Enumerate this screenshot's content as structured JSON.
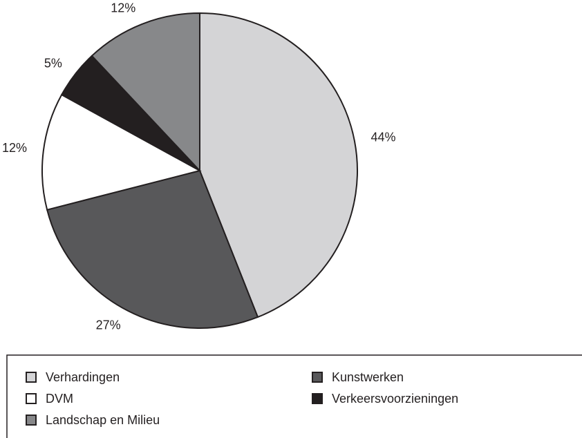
{
  "chart_data": {
    "type": "pie",
    "categories": [
      "Verhardingen",
      "Kunstwerken",
      "DVM",
      "Verkeersvoorzieningen",
      "Landschap en Milieu"
    ],
    "values": [
      44,
      27,
      12,
      5,
      12
    ],
    "value_labels": [
      "44%",
      "27%",
      "12%",
      "5%",
      "12%"
    ],
    "colors": [
      "#d4d4d6",
      "#58585a",
      "#ffffff",
      "#231f20",
      "#87888a"
    ],
    "legend": "bottom"
  }
}
